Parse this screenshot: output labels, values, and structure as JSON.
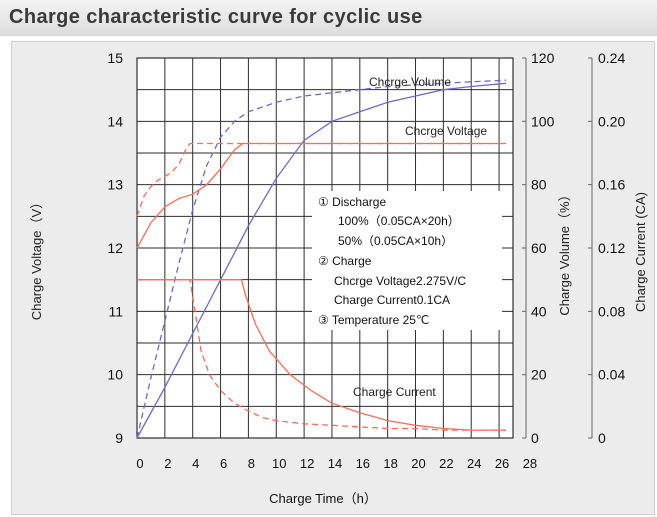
{
  "header": {
    "title": "Charge characteristic curve for cyclic use"
  },
  "colors": {
    "volume": "#6a6ad0",
    "voltage": "#ff6c58",
    "current": "#ff6c58",
    "grid": "#2e2e2e"
  },
  "chart_data": {
    "type": "line",
    "xlabel": "Charge Time（h）",
    "ylabel_left": "Charge Voltage（V）",
    "ylabel_right1": "Charge Volume（%）",
    "ylabel_right2": "Charge Current (CA)",
    "xlim": [
      0,
      27
    ],
    "xticks": [
      "0",
      "2",
      "4",
      "6",
      "8",
      "10",
      "12",
      "14",
      "16",
      "18",
      "20",
      "22",
      "24",
      "26",
      "28"
    ],
    "yticks_left": [
      "9",
      "10",
      "11",
      "12",
      "13",
      "14",
      "15"
    ],
    "ylim_left": [
      9,
      15
    ],
    "yticks_volume": [
      "0",
      "20",
      "40",
      "60",
      "80",
      "100",
      "120"
    ],
    "ylim_volume": [
      0,
      120
    ],
    "yticks_current": [
      "0",
      "0.04",
      "0.08",
      "0.12",
      "0.16",
      "0.20",
      "0.24"
    ],
    "ylim_current": [
      0,
      0.24
    ],
    "series_labels": {
      "volume": "Chcrge Volume",
      "voltage": "Chcrge Voltage",
      "current": "Charge Current"
    },
    "legend": [
      "①  Discharge",
      "100%（0.05CA×20h）",
      "50%（0.05CA×10h）",
      "②  Charge",
      "Chcrge Voltage2.275V/C",
      "Charge Current0.1CA",
      "③  Temperature 25℃"
    ],
    "series": [
      {
        "key": "vol100",
        "axis": "volume",
        "dash": false,
        "color": "volume",
        "x": [
          0,
          2,
          4,
          6,
          8,
          10,
          12,
          14,
          16,
          18,
          20,
          22,
          24,
          26.5
        ],
        "y": [
          0,
          16,
          33,
          50,
          67,
          82,
          94,
          100,
          103,
          106,
          108,
          110,
          111,
          112
        ]
      },
      {
        "key": "vol50",
        "axis": "volume",
        "dash": true,
        "color": "volume",
        "x": [
          0,
          1,
          2,
          3,
          4,
          5,
          6,
          7,
          8,
          10,
          12,
          14,
          16,
          18,
          20,
          22,
          24,
          26.5
        ],
        "y": [
          0,
          19,
          37,
          55,
          72,
          86,
          95,
          100,
          103,
          106,
          108,
          109,
          110,
          111,
          111.5,
          112,
          112.5,
          113
        ]
      },
      {
        "key": "volt100",
        "axis": "voltage",
        "dash": false,
        "color": "voltage",
        "x": [
          0,
          0.5,
          1,
          2,
          3,
          4,
          5,
          6,
          7,
          7.6,
          26.5
        ],
        "y": [
          12.0,
          12.2,
          12.4,
          12.65,
          12.78,
          12.85,
          13.0,
          13.25,
          13.55,
          13.65,
          13.65
        ]
      },
      {
        "key": "volt50",
        "axis": "voltage",
        "dash": true,
        "color": "voltage",
        "x": [
          0,
          0.5,
          1,
          1.5,
          2,
          2.5,
          3,
          3.5,
          3.8,
          26.5
        ],
        "y": [
          12.5,
          12.82,
          12.97,
          13.07,
          13.13,
          13.2,
          13.32,
          13.55,
          13.65,
          13.65
        ]
      },
      {
        "key": "cur100",
        "axis": "current",
        "dash": false,
        "color": "current",
        "x": [
          0,
          7.5,
          7.8,
          8.5,
          9.5,
          11,
          12.5,
          14,
          16,
          18,
          20,
          22,
          24,
          26.5
        ],
        "y": [
          0.1,
          0.1,
          0.09,
          0.072,
          0.055,
          0.04,
          0.03,
          0.022,
          0.016,
          0.011,
          0.008,
          0.006,
          0.005,
          0.005
        ]
      },
      {
        "key": "cur50",
        "axis": "current",
        "dash": true,
        "color": "current",
        "x": [
          0,
          3.8,
          4.2,
          4.6,
          5.2,
          6,
          7,
          8,
          9,
          10,
          12,
          14,
          16,
          18,
          20,
          22,
          24,
          26.5
        ],
        "y": [
          0.1,
          0.1,
          0.078,
          0.055,
          0.04,
          0.03,
          0.022,
          0.017,
          0.013,
          0.011,
          0.009,
          0.008,
          0.007,
          0.006,
          0.006,
          0.005,
          0.005,
          0.005
        ]
      }
    ]
  }
}
